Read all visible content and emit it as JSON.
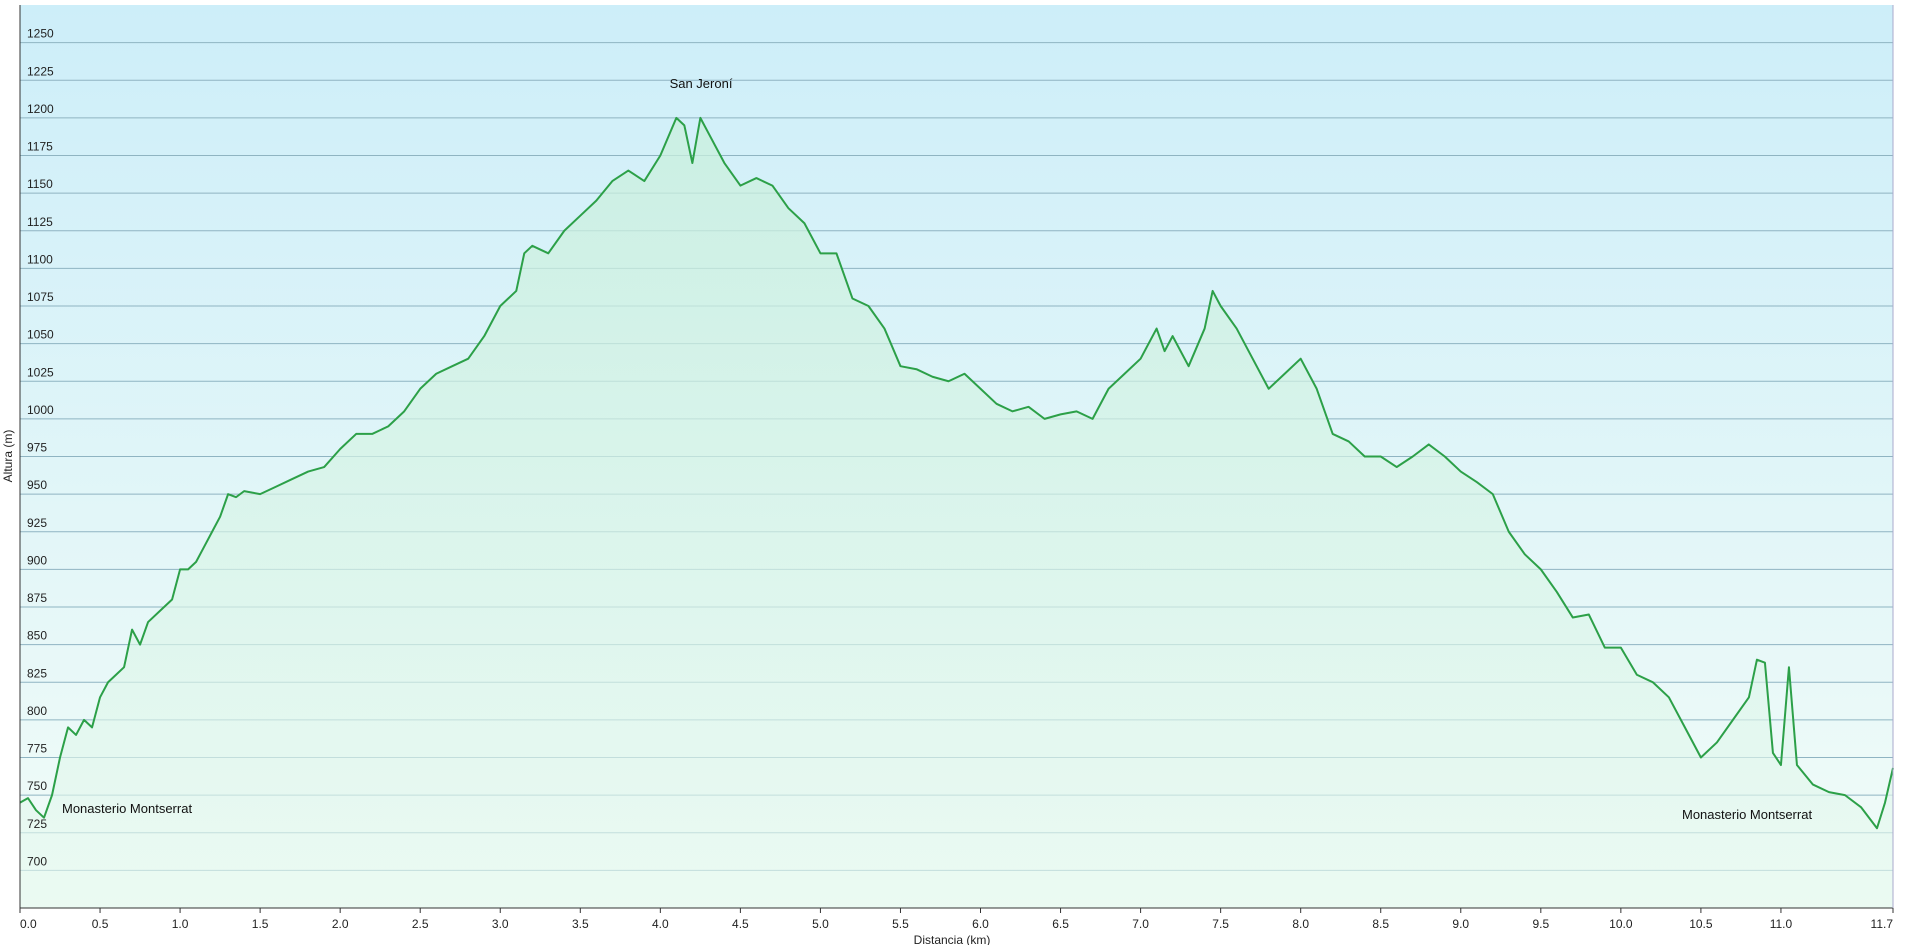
{
  "chart_data": {
    "type": "area",
    "x_label": "Distancia  (km)",
    "y_label": "Altura (m)",
    "annotations": [
      "San Jeroní",
      "Monasterio Montserrat",
      "Monasterio Montserrat"
    ],
    "color": "#2ca048",
    "grid": true,
    "xlim": [
      0,
      11.7
    ],
    "ylim": [
      675,
      1275
    ],
    "xticks": [
      {
        "value": 0,
        "label": "0.0"
      },
      0.5,
      {
        "value": 1,
        "label": "1.0"
      },
      1.5,
      {
        "value": 2,
        "label": "2.0"
      },
      2.5,
      {
        "value": 3,
        "label": "3.0"
      },
      3.5,
      {
        "value": 4,
        "label": "4.0"
      },
      4.5,
      {
        "value": 5,
        "label": "5.0"
      },
      5.5,
      {
        "value": 6,
        "label": "6.0"
      },
      6.5,
      {
        "value": 7,
        "label": "7.0"
      },
      7.5,
      {
        "value": 8,
        "label": "8.0"
      },
      8.5,
      {
        "value": 9,
        "label": "9.0"
      },
      9.5,
      {
        "value": 10,
        "label": "10.0"
      },
      10.5,
      {
        "value": 11,
        "label": "11.0"
      },
      11.7
    ],
    "yticks": [
      700,
      725,
      750,
      775,
      800,
      825,
      850,
      875,
      900,
      925,
      950,
      975,
      1000,
      1025,
      1050,
      1075,
      1100,
      1125,
      1150,
      1175,
      1200,
      1225,
      1250
    ],
    "x": [
      0,
      0.05,
      0.1,
      0.15,
      0.2,
      0.25,
      0.3,
      0.35,
      0.4,
      0.45,
      0.5,
      0.55,
      0.6,
      0.65,
      0.7,
      0.75,
      0.8,
      0.9,
      0.95,
      1.0,
      1.05,
      1.1,
      1.15,
      1.2,
      1.25,
      1.3,
      1.35,
      1.4,
      1.5,
      1.6,
      1.7,
      1.8,
      1.9,
      2.0,
      2.1,
      2.2,
      2.3,
      2.4,
      2.5,
      2.6,
      2.7,
      2.8,
      2.9,
      3.0,
      3.1,
      3.15,
      3.2,
      3.3,
      3.4,
      3.5,
      3.6,
      3.7,
      3.8,
      3.9,
      4.0,
      4.1,
      4.15,
      4.2,
      4.25,
      4.3,
      4.4,
      4.5,
      4.6,
      4.7,
      4.8,
      4.9,
      5.0,
      5.1,
      5.2,
      5.3,
      5.4,
      5.5,
      5.6,
      5.7,
      5.8,
      5.9,
      6.0,
      6.1,
      6.2,
      6.3,
      6.4,
      6.5,
      6.6,
      6.7,
      6.8,
      6.9,
      7.0,
      7.1,
      7.15,
      7.2,
      7.3,
      7.4,
      7.45,
      7.5,
      7.6,
      7.7,
      7.8,
      7.9,
      8.0,
      8.1,
      8.2,
      8.3,
      8.4,
      8.5,
      8.6,
      8.7,
      8.8,
      8.9,
      9.0,
      9.1,
      9.2,
      9.3,
      9.4,
      9.5,
      9.6,
      9.7,
      9.8,
      9.9,
      10.0,
      10.1,
      10.2,
      10.3,
      10.4,
      10.5,
      10.6,
      10.7,
      10.8,
      10.85,
      10.9,
      10.95,
      11.0,
      11.05,
      11.1,
      11.2,
      11.3,
      11.4,
      11.5,
      11.6,
      11.65,
      11.7
    ],
    "values": [
      745,
      748,
      740,
      735,
      750,
      775,
      795,
      790,
      800,
      795,
      815,
      825,
      830,
      835,
      860,
      850,
      865,
      875,
      880,
      900,
      900,
      905,
      915,
      925,
      935,
      950,
      948,
      952,
      950,
      955,
      960,
      965,
      968,
      980,
      990,
      990,
      995,
      1005,
      1020,
      1030,
      1035,
      1040,
      1055,
      1075,
      1085,
      1110,
      1115,
      1110,
      1125,
      1135,
      1145,
      1158,
      1165,
      1158,
      1175,
      1200,
      1195,
      1170,
      1200,
      1190,
      1170,
      1155,
      1160,
      1155,
      1140,
      1130,
      1110,
      1110,
      1080,
      1075,
      1060,
      1035,
      1033,
      1028,
      1025,
      1030,
      1020,
      1010,
      1005,
      1008,
      1000,
      1003,
      1005,
      1000,
      1020,
      1030,
      1040,
      1060,
      1045,
      1055,
      1035,
      1060,
      1085,
      1075,
      1060,
      1040,
      1020,
      1030,
      1040,
      1020,
      990,
      985,
      975,
      975,
      968,
      975,
      983,
      975,
      965,
      958,
      950,
      925,
      910,
      900,
      885,
      868,
      870,
      848,
      848,
      830,
      825,
      815,
      795,
      775,
      785,
      800,
      815,
      840,
      838,
      778,
      770,
      835,
      770,
      757,
      752,
      750,
      742,
      728,
      745,
      768
    ]
  }
}
